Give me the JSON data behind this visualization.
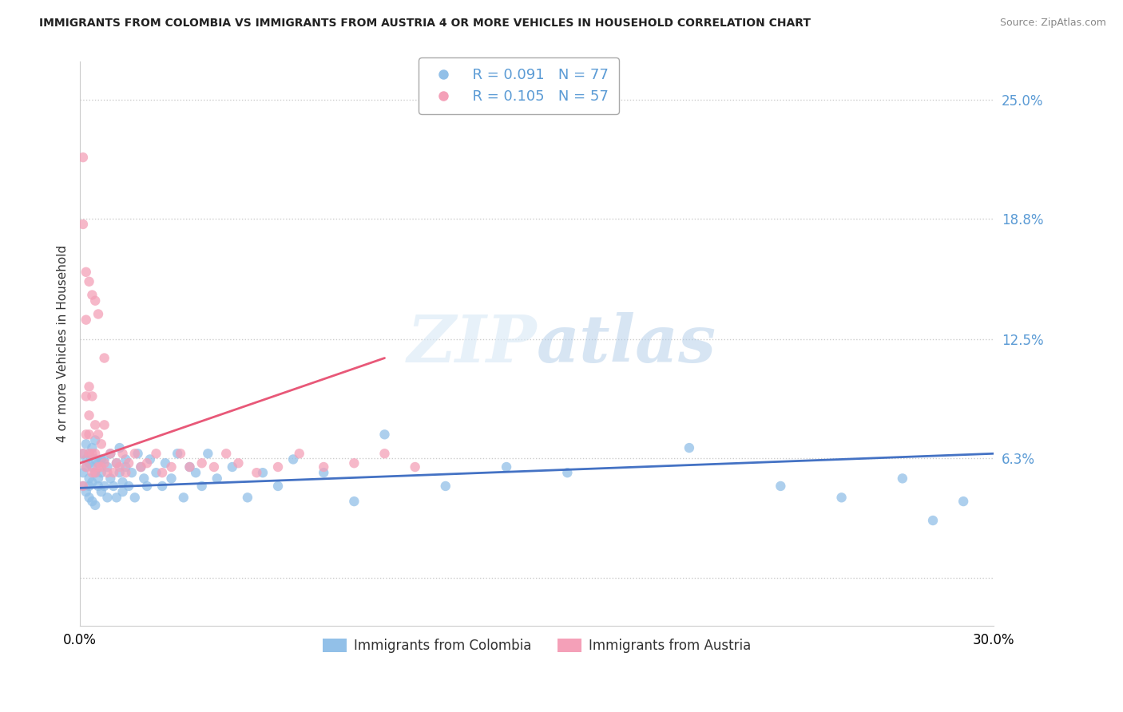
{
  "title": "IMMIGRANTS FROM COLOMBIA VS IMMIGRANTS FROM AUSTRIA 4 OR MORE VEHICLES IN HOUSEHOLD CORRELATION CHART",
  "source": "Source: ZipAtlas.com",
  "ylabel": "4 or more Vehicles in Household",
  "colombia_color": "#92c0e8",
  "austria_color": "#f4a0b8",
  "colombia_line_color": "#4472c4",
  "austria_line_color": "#e85878",
  "colombia_R": 0.091,
  "colombia_N": 77,
  "austria_R": 0.105,
  "austria_N": 57,
  "legend_label_colombia": "Immigrants from Colombia",
  "legend_label_austria": "Immigrants from Austria",
  "watermark": "ZIPatlas",
  "xmin": 0.0,
  "xmax": 0.3,
  "ymin": -0.025,
  "ymax": 0.27,
  "colombia_scatter_x": [
    0.001,
    0.001,
    0.001,
    0.002,
    0.002,
    0.002,
    0.002,
    0.003,
    0.003,
    0.003,
    0.003,
    0.003,
    0.004,
    0.004,
    0.004,
    0.004,
    0.005,
    0.005,
    0.005,
    0.005,
    0.006,
    0.006,
    0.006,
    0.007,
    0.007,
    0.007,
    0.008,
    0.008,
    0.009,
    0.009,
    0.01,
    0.01,
    0.011,
    0.012,
    0.012,
    0.013,
    0.013,
    0.014,
    0.014,
    0.015,
    0.015,
    0.016,
    0.017,
    0.018,
    0.019,
    0.02,
    0.021,
    0.022,
    0.023,
    0.025,
    0.027,
    0.028,
    0.03,
    0.032,
    0.034,
    0.036,
    0.038,
    0.04,
    0.042,
    0.045,
    0.05,
    0.055,
    0.06,
    0.065,
    0.07,
    0.08,
    0.09,
    0.1,
    0.12,
    0.14,
    0.16,
    0.2,
    0.23,
    0.25,
    0.27,
    0.28,
    0.29
  ],
  "colombia_scatter_y": [
    0.055,
    0.065,
    0.048,
    0.058,
    0.062,
    0.045,
    0.07,
    0.052,
    0.06,
    0.048,
    0.065,
    0.042,
    0.058,
    0.05,
    0.068,
    0.04,
    0.055,
    0.062,
    0.072,
    0.038,
    0.06,
    0.048,
    0.052,
    0.062,
    0.045,
    0.055,
    0.048,
    0.062,
    0.058,
    0.042,
    0.052,
    0.065,
    0.048,
    0.06,
    0.042,
    0.055,
    0.068,
    0.05,
    0.045,
    0.058,
    0.062,
    0.048,
    0.055,
    0.042,
    0.065,
    0.058,
    0.052,
    0.048,
    0.062,
    0.055,
    0.048,
    0.06,
    0.052,
    0.065,
    0.042,
    0.058,
    0.055,
    0.048,
    0.065,
    0.052,
    0.058,
    0.042,
    0.055,
    0.048,
    0.062,
    0.055,
    0.04,
    0.075,
    0.048,
    0.058,
    0.055,
    0.068,
    0.048,
    0.042,
    0.052,
    0.03,
    0.04
  ],
  "austria_scatter_x": [
    0.001,
    0.001,
    0.001,
    0.002,
    0.002,
    0.002,
    0.002,
    0.003,
    0.003,
    0.003,
    0.003,
    0.004,
    0.004,
    0.004,
    0.005,
    0.005,
    0.005,
    0.006,
    0.006,
    0.007,
    0.007,
    0.008,
    0.008,
    0.009,
    0.01,
    0.011,
    0.012,
    0.013,
    0.014,
    0.015,
    0.016,
    0.018,
    0.02,
    0.022,
    0.025,
    0.027,
    0.03,
    0.033,
    0.036,
    0.04,
    0.044,
    0.048,
    0.052,
    0.058,
    0.065,
    0.072,
    0.08,
    0.09,
    0.1,
    0.11,
    0.001,
    0.002,
    0.003,
    0.004,
    0.005,
    0.006,
    0.008
  ],
  "austria_scatter_y": [
    0.22,
    0.065,
    0.048,
    0.075,
    0.135,
    0.095,
    0.058,
    0.1,
    0.065,
    0.075,
    0.085,
    0.095,
    0.065,
    0.055,
    0.08,
    0.065,
    0.055,
    0.075,
    0.058,
    0.07,
    0.058,
    0.08,
    0.06,
    0.055,
    0.065,
    0.055,
    0.06,
    0.058,
    0.065,
    0.055,
    0.06,
    0.065,
    0.058,
    0.06,
    0.065,
    0.055,
    0.058,
    0.065,
    0.058,
    0.06,
    0.058,
    0.065,
    0.06,
    0.055,
    0.058,
    0.065,
    0.058,
    0.06,
    0.065,
    0.058,
    0.185,
    0.16,
    0.155,
    0.148,
    0.145,
    0.138,
    0.115
  ],
  "col_trend_x": [
    0.0,
    0.3
  ],
  "col_trend_y": [
    0.047,
    0.065
  ],
  "aust_trend_x": [
    0.0,
    0.1
  ],
  "aust_trend_y": [
    0.06,
    0.115
  ]
}
